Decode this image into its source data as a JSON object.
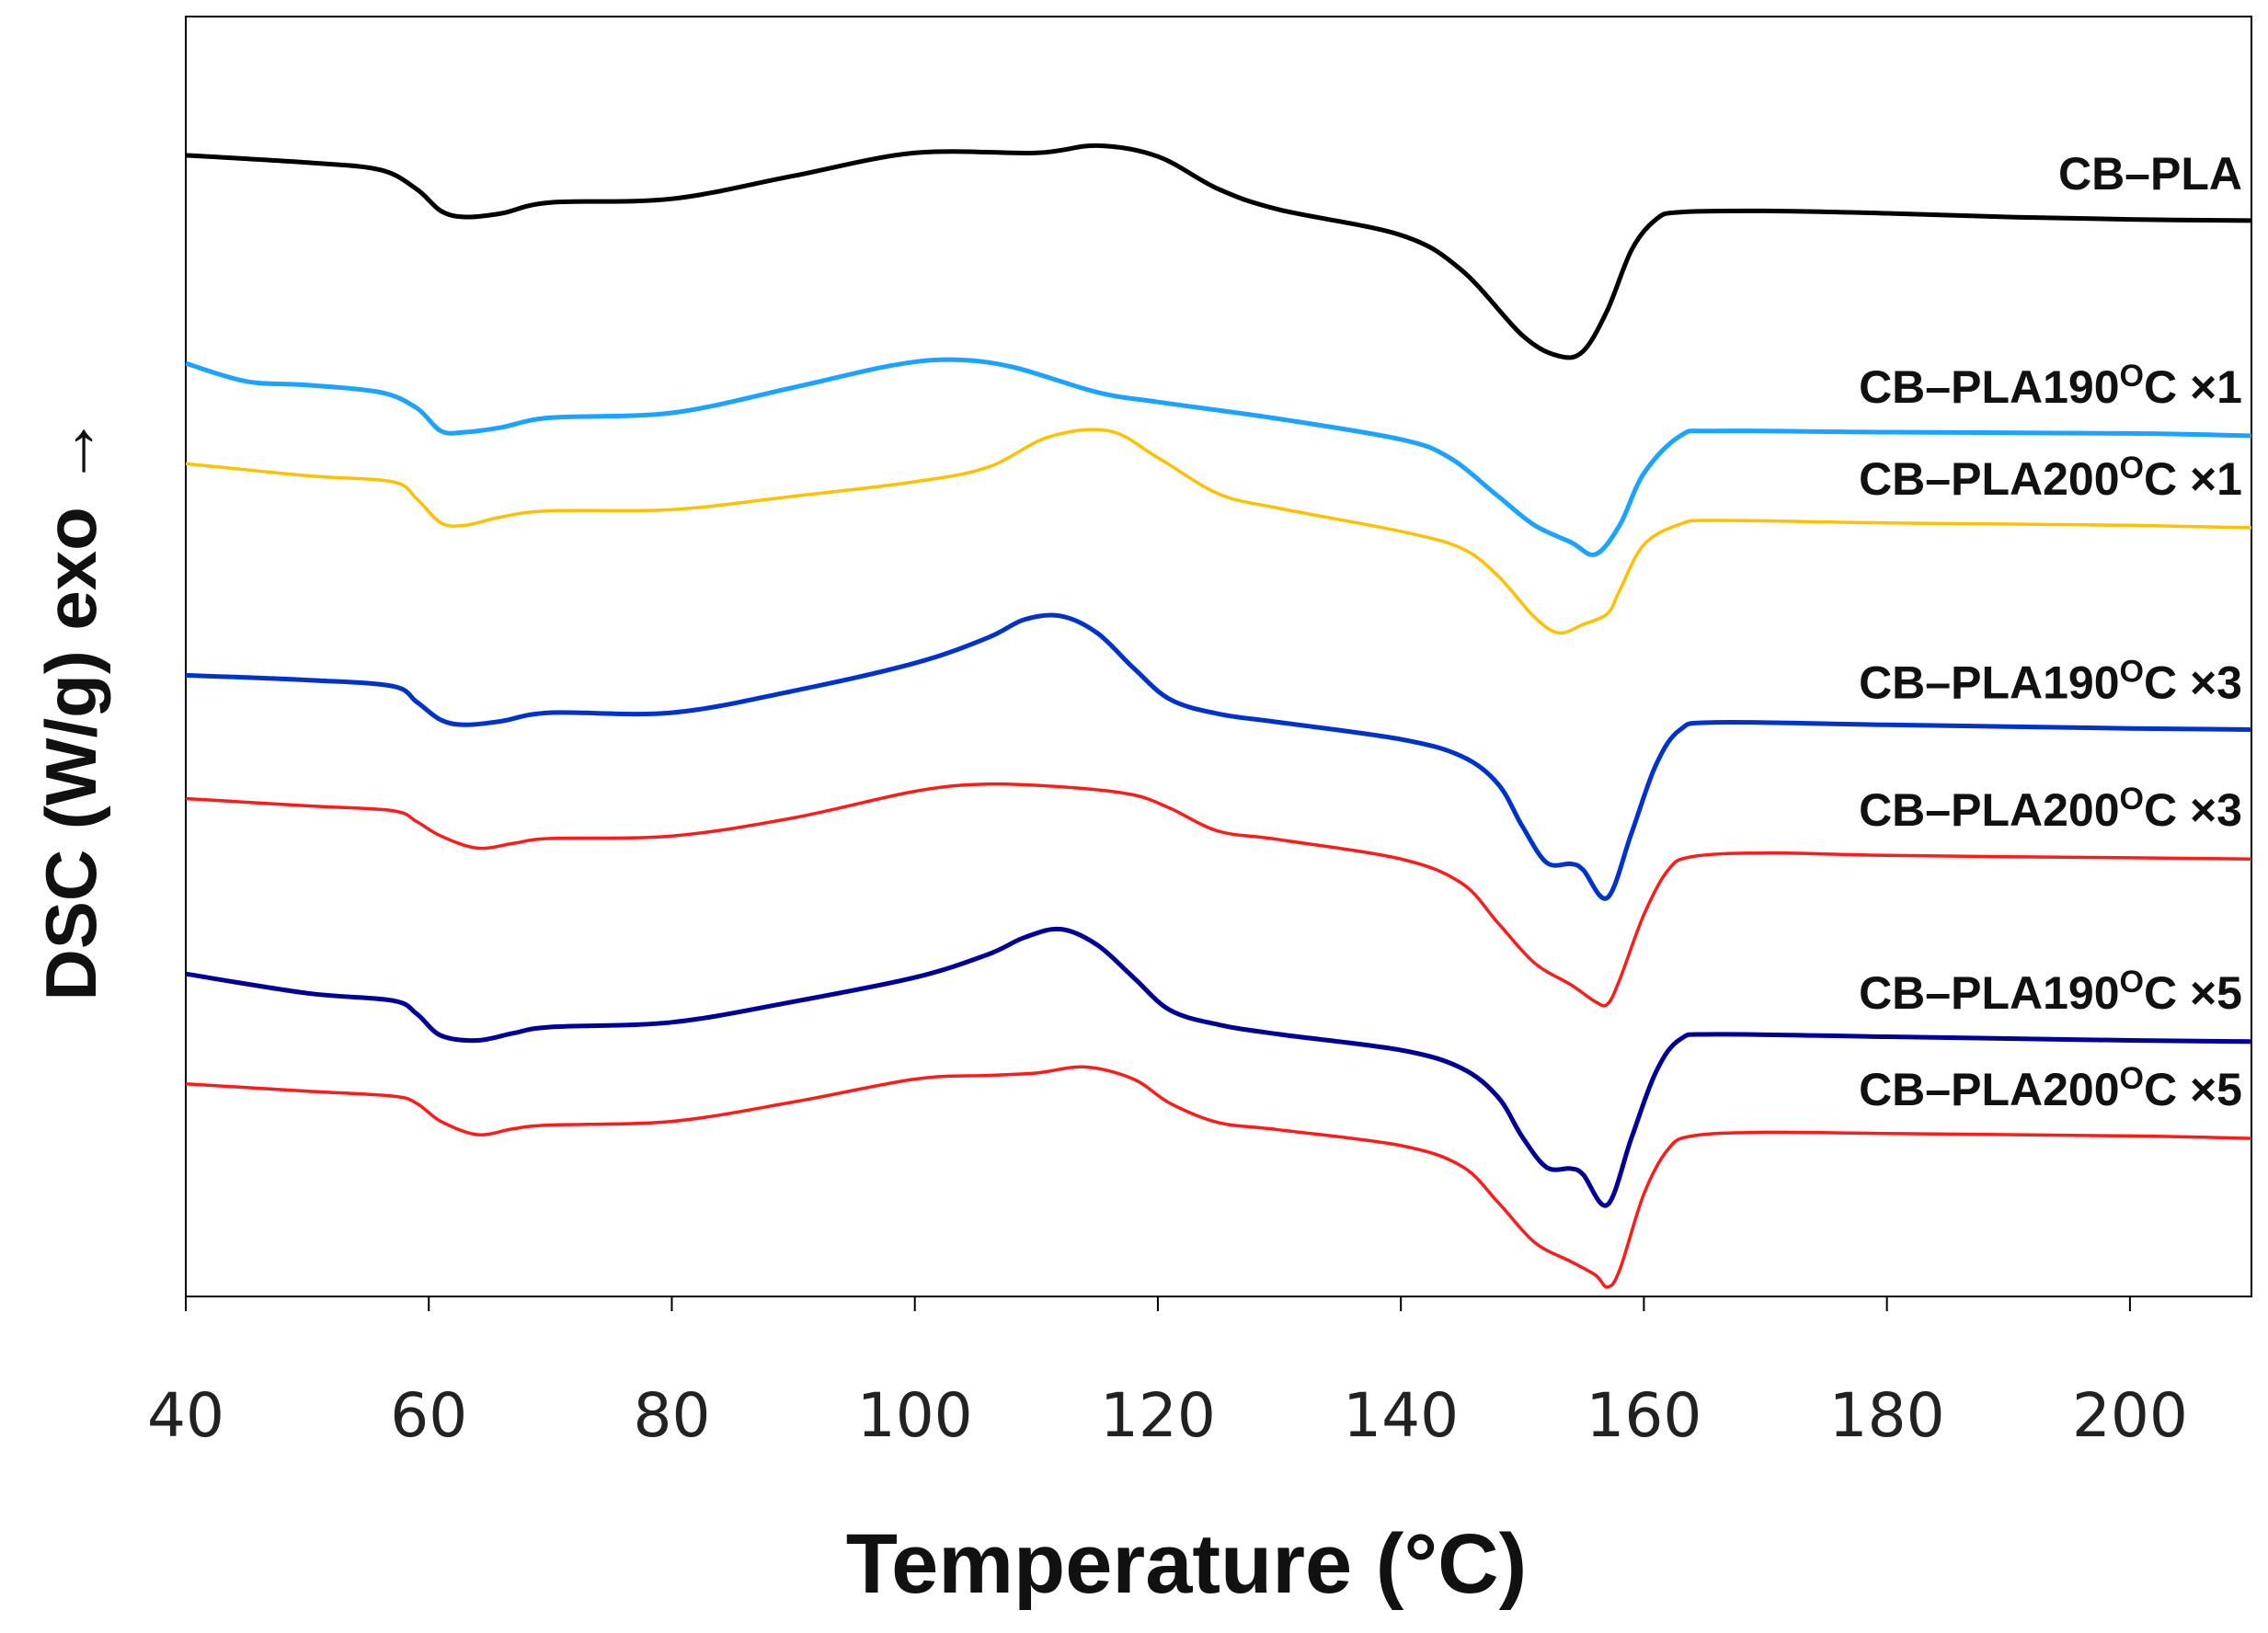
{
  "chart_data": {
    "type": "line",
    "title": "",
    "xlabel": "Temperature (°C)",
    "ylabel": "DSC (W/g) exo →",
    "xlim": [
      40,
      210
    ],
    "x_ticks": [
      40,
      60,
      80,
      100,
      120,
      140,
      160,
      180,
      200
    ],
    "y_ticks": "none",
    "grid": false,
    "legend": "inline labels at right end of each curve",
    "ylim": [
      0,
      100
    ],
    "series": [
      {
        "name": "CB–PLA",
        "label_base": "CB–PLA",
        "label_sup": "",
        "label_suffix": "",
        "color": "#000000",
        "points": [
          [
            40,
            94
          ],
          [
            50,
            93.4
          ],
          [
            56,
            92.8
          ],
          [
            59,
            91.2
          ],
          [
            61,
            89.4
          ],
          [
            63,
            88.9
          ],
          [
            66,
            89.2
          ],
          [
            70,
            90.1
          ],
          [
            80,
            90.4
          ],
          [
            90,
            92.3
          ],
          [
            100,
            94.2
          ],
          [
            110,
            94.2
          ],
          [
            115,
            94.8
          ],
          [
            120,
            93.9
          ],
          [
            125,
            91.2
          ],
          [
            130,
            89.5
          ],
          [
            140,
            87.4
          ],
          [
            145,
            84.5
          ],
          [
            150,
            79.1
          ],
          [
            153,
            77.4
          ],
          [
            155,
            77.8
          ],
          [
            157,
            81.2
          ],
          [
            159,
            86.2
          ],
          [
            161,
            88.7
          ],
          [
            163,
            89.3
          ],
          [
            170,
            89.4
          ],
          [
            180,
            89.2
          ],
          [
            190,
            88.9
          ],
          [
            200,
            88.7
          ],
          [
            210,
            88.6
          ]
        ]
      },
      {
        "name": "CB–PLA190°C ×1",
        "label_base": "CB–PLA190",
        "label_sup": "O",
        "label_suffix": "C ×1",
        "color": "#1aa3ff",
        "points": [
          [
            40,
            76.8
          ],
          [
            45,
            75.3
          ],
          [
            50,
            75
          ],
          [
            56,
            74.4
          ],
          [
            59,
            73.1
          ],
          [
            61,
            71.2
          ],
          [
            63,
            71.1
          ],
          [
            66,
            71.5
          ],
          [
            70,
            72.3
          ],
          [
            80,
            72.7
          ],
          [
            90,
            74.8
          ],
          [
            98,
            76.6
          ],
          [
            103,
            77.1
          ],
          [
            108,
            76.5
          ],
          [
            115,
            74.4
          ],
          [
            120,
            73.6
          ],
          [
            130,
            72.2
          ],
          [
            140,
            70.5
          ],
          [
            144,
            69
          ],
          [
            148,
            65.8
          ],
          [
            151,
            63.4
          ],
          [
            154,
            62
          ],
          [
            156,
            61
          ],
          [
            158,
            63.4
          ],
          [
            160,
            67.7
          ],
          [
            163,
            70.8
          ],
          [
            166,
            71.2
          ],
          [
            180,
            71.1
          ],
          [
            200,
            71
          ],
          [
            210,
            70.8
          ]
        ]
      },
      {
        "name": "CB–PLA200°C ×1",
        "label_base": "CB–PLA200",
        "label_sup": "O",
        "label_suffix": "C ×1",
        "color": "#ffc000",
        "points": [
          [
            40,
            68.5
          ],
          [
            50,
            67.5
          ],
          [
            57,
            67
          ],
          [
            59,
            65.6
          ],
          [
            61,
            63.6
          ],
          [
            63,
            63.4
          ],
          [
            66,
            64.1
          ],
          [
            70,
            64.6
          ],
          [
            80,
            64.7
          ],
          [
            90,
            65.8
          ],
          [
            100,
            67
          ],
          [
            106,
            68.2
          ],
          [
            111,
            70.7
          ],
          [
            116,
            71.2
          ],
          [
            120,
            69
          ],
          [
            125,
            66
          ],
          [
            130,
            64.8
          ],
          [
            140,
            62.9
          ],
          [
            145,
            61.5
          ],
          [
            148,
            59.2
          ],
          [
            151,
            55.8
          ],
          [
            153,
            54.5
          ],
          [
            155,
            55.2
          ],
          [
            157,
            56.1
          ],
          [
            158,
            58
          ],
          [
            160,
            61.8
          ],
          [
            163,
            63.5
          ],
          [
            166,
            63.8
          ],
          [
            180,
            63.6
          ],
          [
            200,
            63.4
          ],
          [
            210,
            63.2
          ]
        ]
      },
      {
        "name": "CB–PLA190°C ×3",
        "label_base": "CB–PLA190",
        "label_sup": "O",
        "label_suffix": "C ×3",
        "color": "#0033cc",
        "points": [
          [
            40,
            51
          ],
          [
            50,
            50.6
          ],
          [
            57,
            50.1
          ],
          [
            59,
            48.8
          ],
          [
            61,
            47.3
          ],
          [
            63,
            46.9
          ],
          [
            66,
            47.2
          ],
          [
            70,
            47.9
          ],
          [
            80,
            47.9
          ],
          [
            90,
            49.7
          ],
          [
            100,
            52
          ],
          [
            106,
            54.1
          ],
          [
            109,
            55.6
          ],
          [
            112,
            55.9
          ],
          [
            115,
            54.5
          ],
          [
            118,
            51.6
          ],
          [
            121,
            49
          ],
          [
            125,
            47.8
          ],
          [
            130,
            47.1
          ],
          [
            140,
            45.7
          ],
          [
            145,
            44.3
          ],
          [
            148,
            42
          ],
          [
            150,
            38.5
          ],
          [
            152,
            35.5
          ],
          [
            154,
            35.4
          ],
          [
            155,
            34.9
          ],
          [
            157,
            32.6
          ],
          [
            159,
            38
          ],
          [
            161,
            43.6
          ],
          [
            163,
            46.5
          ],
          [
            166,
            47.1
          ],
          [
            180,
            46.9
          ],
          [
            200,
            46.6
          ],
          [
            210,
            46.5
          ]
        ]
      },
      {
        "name": "CB–PLA200°C ×3",
        "label_base": "CB–PLA200",
        "label_sup": "O",
        "label_suffix": "C ×3",
        "color": "#ff1a1a",
        "points": [
          [
            40,
            40.8
          ],
          [
            50,
            40.2
          ],
          [
            57,
            39.8
          ],
          [
            59,
            38.9
          ],
          [
            61,
            37.7
          ],
          [
            64,
            36.7
          ],
          [
            67,
            37.1
          ],
          [
            70,
            37.5
          ],
          [
            80,
            37.7
          ],
          [
            90,
            39.2
          ],
          [
            100,
            41.4
          ],
          [
            106,
            42
          ],
          [
            113,
            41.7
          ],
          [
            118,
            41.1
          ],
          [
            121,
            40
          ],
          [
            125,
            38.1
          ],
          [
            130,
            37.4
          ],
          [
            140,
            35.8
          ],
          [
            145,
            33.8
          ],
          [
            148,
            30.5
          ],
          [
            151,
            27.2
          ],
          [
            154,
            25.4
          ],
          [
            156,
            24
          ],
          [
            157,
            23.8
          ],
          [
            158,
            25.8
          ],
          [
            160,
            31.2
          ],
          [
            162,
            34.9
          ],
          [
            164,
            36
          ],
          [
            170,
            36.3
          ],
          [
            180,
            36.1
          ],
          [
            200,
            35.9
          ],
          [
            210,
            35.8
          ]
        ]
      },
      {
        "name": "CB–PLA190°C ×5",
        "label_base": "CB–PLA190",
        "label_sup": "O",
        "label_suffix": "C ×5",
        "color": "#000099",
        "points": [
          [
            40,
            26.3
          ],
          [
            50,
            24.7
          ],
          [
            57,
            24.1
          ],
          [
            59,
            23
          ],
          [
            61,
            21.2
          ],
          [
            64,
            20.8
          ],
          [
            67,
            21.4
          ],
          [
            70,
            21.9
          ],
          [
            80,
            22.3
          ],
          [
            90,
            24
          ],
          [
            100,
            26
          ],
          [
            106,
            27.9
          ],
          [
            109,
            29.3
          ],
          [
            112,
            30
          ],
          [
            115,
            28.7
          ],
          [
            118,
            26
          ],
          [
            121,
            23.3
          ],
          [
            125,
            22.1
          ],
          [
            130,
            21.3
          ],
          [
            140,
            20
          ],
          [
            145,
            18.5
          ],
          [
            148,
            16.1
          ],
          [
            150,
            12.8
          ],
          [
            152,
            10.3
          ],
          [
            154,
            10.2
          ],
          [
            155,
            9.7
          ],
          [
            157,
            7.2
          ],
          [
            159,
            12.8
          ],
          [
            161,
            18.2
          ],
          [
            163,
            20.9
          ],
          [
            166,
            21.3
          ],
          [
            180,
            21.1
          ],
          [
            200,
            20.8
          ],
          [
            210,
            20.7
          ]
        ]
      },
      {
        "name": "CB–PLA200°C ×5",
        "label_base": "CB–PLA200",
        "label_sup": "O",
        "label_suffix": "C ×5",
        "color": "#ff1a1a",
        "points": [
          [
            40,
            17.2
          ],
          [
            50,
            16.6
          ],
          [
            57,
            16.2
          ],
          [
            59,
            15.6
          ],
          [
            61,
            14.1
          ],
          [
            64,
            13
          ],
          [
            67,
            13.5
          ],
          [
            70,
            13.8
          ],
          [
            80,
            14.1
          ],
          [
            90,
            15.7
          ],
          [
            100,
            17.6
          ],
          [
            106,
            17.9
          ],
          [
            110,
            18.1
          ],
          [
            114,
            18.6
          ],
          [
            118,
            17.6
          ],
          [
            121,
            15.6
          ],
          [
            125,
            14
          ],
          [
            130,
            13.4
          ],
          [
            140,
            12.1
          ],
          [
            145,
            10.4
          ],
          [
            148,
            7.4
          ],
          [
            151,
            4.1
          ],
          [
            154,
            2.5
          ],
          [
            156,
            1.4
          ],
          [
            157,
            0.4
          ],
          [
            158,
            1.8
          ],
          [
            160,
            8.1
          ],
          [
            162,
            11.8
          ],
          [
            164,
            12.9
          ],
          [
            170,
            13.2
          ],
          [
            180,
            13.1
          ],
          [
            200,
            12.9
          ],
          [
            210,
            12.7
          ]
        ]
      }
    ]
  }
}
